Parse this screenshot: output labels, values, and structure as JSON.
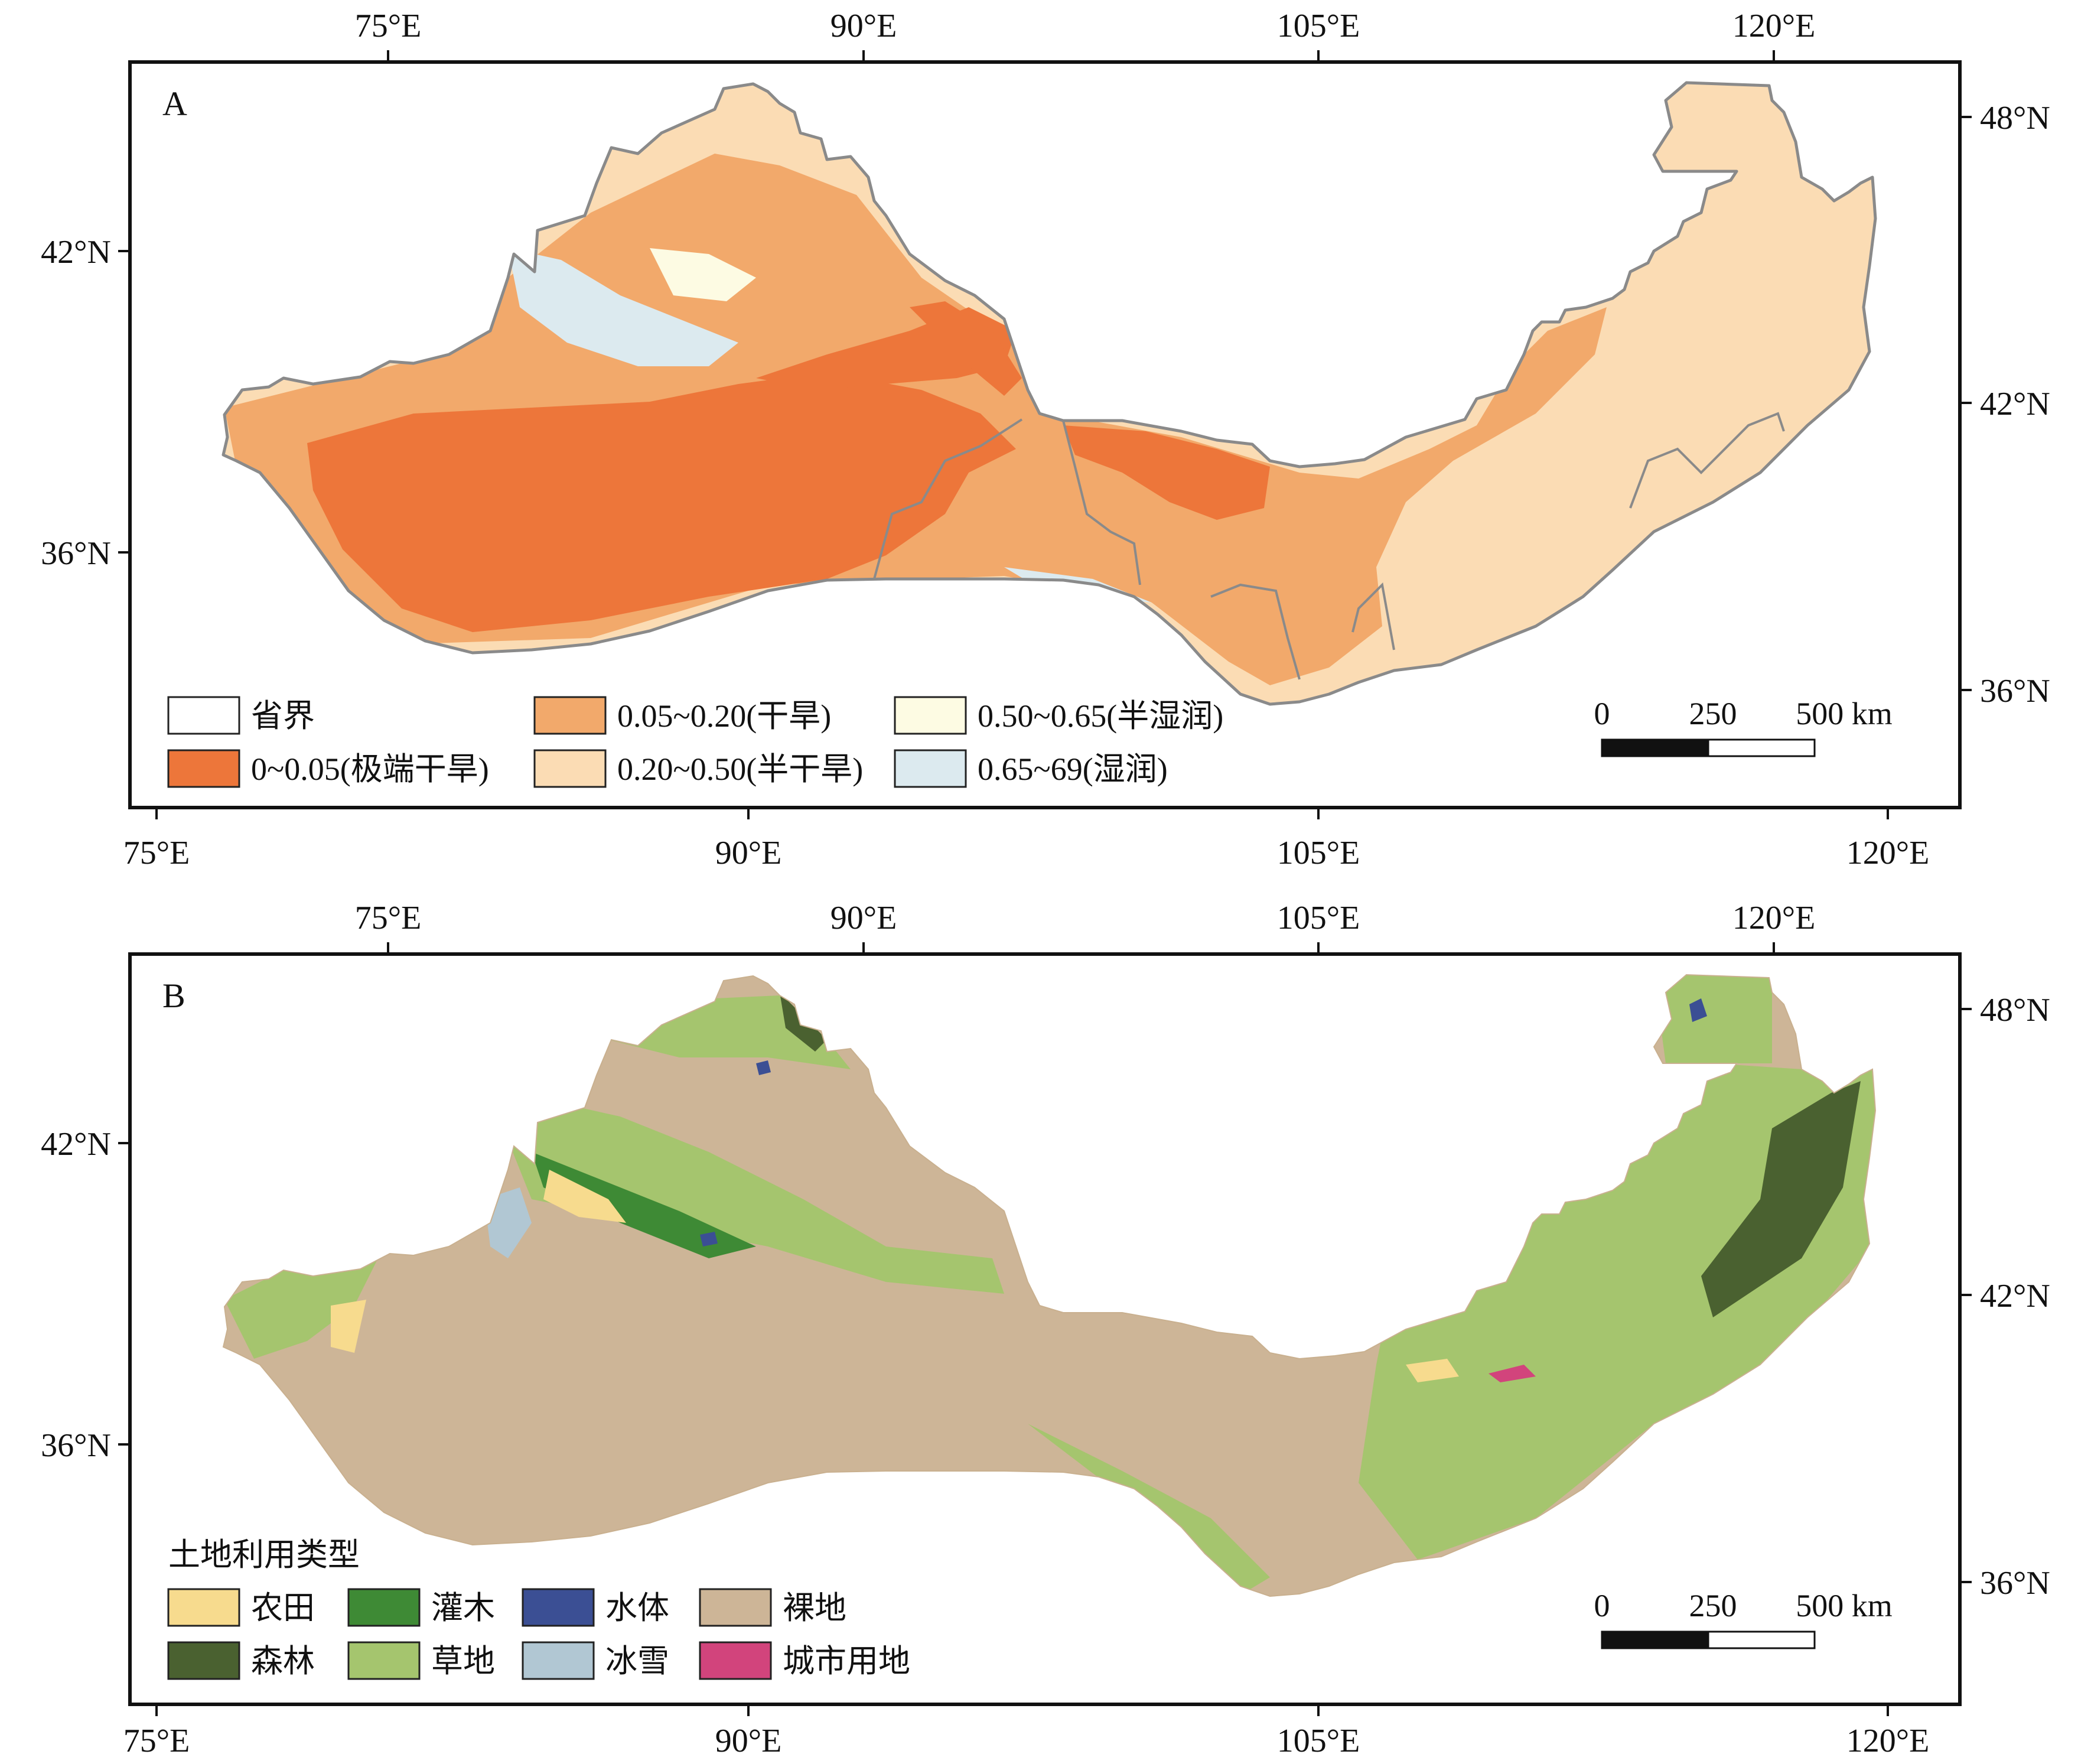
{
  "panels": [
    {
      "letter": "A",
      "top_lon": [
        "75°E",
        "90°E",
        "105°E",
        "120°E"
      ],
      "bottom_lon": [
        "75°E",
        "90°E",
        "105°E",
        "120°E"
      ],
      "left_lat": [
        "42°N",
        "36°N"
      ],
      "right_lat": [
        "48°N",
        "42°N",
        "36°N"
      ],
      "legend_title": "",
      "legend": [
        {
          "label": "省界",
          "color": "#ffffff"
        },
        {
          "label": "0~0.05(极端干旱)",
          "color": "#ed763a"
        },
        {
          "label": "0.05~0.20(干旱)",
          "color": "#f2a96b"
        },
        {
          "label": "0.20~0.50(半干旱)",
          "color": "#fbdcb4"
        },
        {
          "label": "0.50~0.65(半湿润)",
          "color": "#fdfbe3"
        },
        {
          "label": "0.65~69(湿润)",
          "color": "#dceaef"
        }
      ],
      "scale": {
        "l0": "0",
        "l1": "250",
        "l2": "500 km"
      }
    },
    {
      "letter": "B",
      "top_lon": [
        "75°E",
        "90°E",
        "105°E",
        "120°E"
      ],
      "bottom_lon": [
        "75°E",
        "90°E",
        "105°E",
        "120°E"
      ],
      "left_lat": [
        "42°N",
        "36°N"
      ],
      "right_lat": [
        "48°N",
        "42°N",
        "36°N"
      ],
      "legend_title": "土地利用类型",
      "legend": [
        {
          "label": "农田",
          "color": "#f7db8e"
        },
        {
          "label": "灌木",
          "color": "#3e8a35"
        },
        {
          "label": "水体",
          "color": "#3b4f94"
        },
        {
          "label": "裸地",
          "color": "#cdb597"
        },
        {
          "label": "森林",
          "color": "#4a6130"
        },
        {
          "label": "草地",
          "color": "#a5c56e"
        },
        {
          "label": "冰雪",
          "color": "#b1c7d3"
        },
        {
          "label": "城市用地",
          "color": "#d2447c"
        }
      ],
      "scale": {
        "l0": "0",
        "l1": "250",
        "l2": "500 km"
      }
    }
  ]
}
